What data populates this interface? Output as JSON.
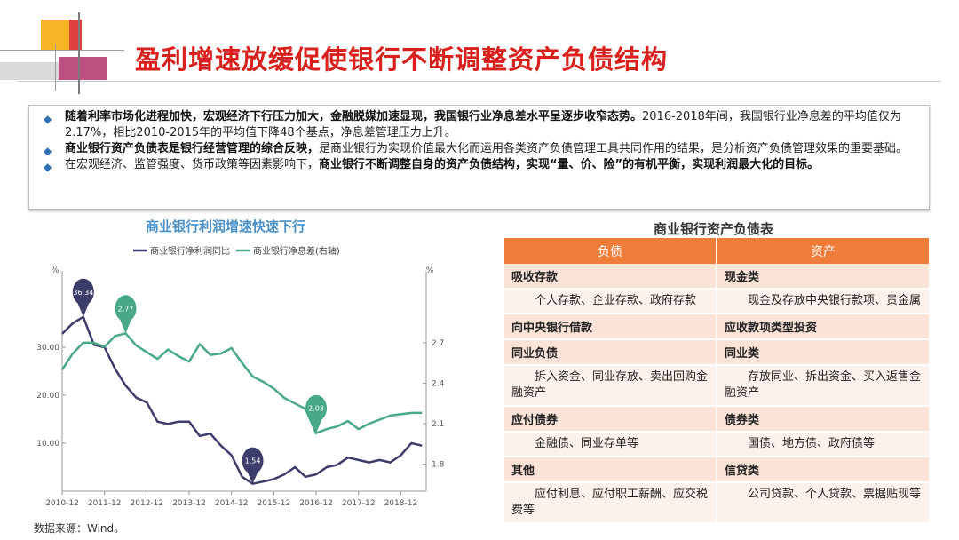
{
  "title": "盈利增速放缓促使银行不断调整资产负债结构",
  "summary": [
    {
      "bold": "随着利率市场化进程加快，宏观经济下行压力加大，金融脱媒加速显现，我国银行业净息差水平呈逐步收窄态势。",
      "normal": "2016-2018年间，我国银行业净息差的平均值仅为2.17%，相比2010-2015年的平均值下降48个基点，净息差管理压力上升。",
      "bold2": ""
    },
    {
      "bold": "商业银行资产负债表是银行经营管理的综合反映，",
      "normal": "是商业银行为实现价值最大化而运用各类资产负债管理工具共同作用的结果，是分析资产负债管理效果的重要基础。",
      "bold2": ""
    },
    {
      "bold": "",
      "normal": "在宏观经济、监管强度、货币政策等因素影响下，",
      "bold2": "商业银行不断调整自身的资产负债结构，实现“量、价、险”的有机平衡，实现利润最大化的目标。"
    }
  ],
  "chart_heading": "商业银行利润增速快速下行",
  "table_heading": "商业银行资产负债表",
  "source": "数据来源：Wind。",
  "colors": {
    "profit": "#3d3d6b",
    "nim": "#4aa88a",
    "accent": "#d8201c",
    "table_header": "#f07c3a"
  },
  "chart_data": {
    "type": "line",
    "legend": [
      "商业银行净利润同比",
      "商业银行净息差(右轴)"
    ],
    "y_left_unit": "%",
    "y_right_unit": "%",
    "y_left_ticks": [
      "30.00",
      "20.00",
      "10.00"
    ],
    "y_right_ticks": [
      "2.70",
      "2.40",
      "2.10",
      "1.80"
    ],
    "y_left_range": [
      0,
      45
    ],
    "y_right_range": [
      1.6,
      3.2
    ],
    "x_ticks": [
      "2010-12",
      "2011-12",
      "2012-12",
      "2013-12",
      "2014-12",
      "2015-12",
      "2016-12",
      "2017-12",
      "2018-12"
    ],
    "x_range": [
      2010.75,
      2019.35
    ],
    "series": [
      {
        "name": "商业银行净利润同比",
        "axis": "left",
        "points": [
          [
            2010.75,
            32.8
          ],
          [
            2011.0,
            35.0
          ],
          [
            2011.25,
            36.34
          ],
          [
            2011.5,
            30.5
          ],
          [
            2011.75,
            30.0
          ],
          [
            2012.0,
            25.5
          ],
          [
            2012.25,
            22.0
          ],
          [
            2012.5,
            19.5
          ],
          [
            2012.75,
            18.5
          ],
          [
            2013.0,
            14.5
          ],
          [
            2013.25,
            14.0
          ],
          [
            2013.5,
            14.5
          ],
          [
            2013.75,
            14.5
          ],
          [
            2014.0,
            11.5
          ],
          [
            2014.25,
            12.0
          ],
          [
            2014.5,
            9.5
          ],
          [
            2014.75,
            7.5
          ],
          [
            2015.0,
            3.0
          ],
          [
            2015.25,
            1.54
          ],
          [
            2015.5,
            2.0
          ],
          [
            2015.75,
            2.5
          ],
          [
            2016.0,
            3.5
          ],
          [
            2016.25,
            5.0
          ],
          [
            2016.5,
            3.0
          ],
          [
            2016.75,
            3.5
          ],
          [
            2017.0,
            5.0
          ],
          [
            2017.25,
            5.5
          ],
          [
            2017.5,
            7.0
          ],
          [
            2017.75,
            6.5
          ],
          [
            2018.0,
            6.0
          ],
          [
            2018.25,
            6.5
          ],
          [
            2018.5,
            6.0
          ],
          [
            2018.75,
            7.5
          ],
          [
            2019.0,
            10.0
          ],
          [
            2019.25,
            9.5
          ]
        ],
        "annotation": [
          {
            "x": 2011.25,
            "y": 36.34,
            "label": "36.34"
          },
          {
            "x": 2015.25,
            "y": 1.54,
            "label": "1.54"
          }
        ]
      },
      {
        "name": "商业银行净息差(右轴)",
        "axis": "right",
        "points": [
          [
            2010.75,
            2.5
          ],
          [
            2011.0,
            2.62
          ],
          [
            2011.25,
            2.7
          ],
          [
            2011.5,
            2.7
          ],
          [
            2011.75,
            2.67
          ],
          [
            2012.0,
            2.75
          ],
          [
            2012.25,
            2.77
          ],
          [
            2012.5,
            2.68
          ],
          [
            2012.75,
            2.63
          ],
          [
            2013.0,
            2.58
          ],
          [
            2013.25,
            2.65
          ],
          [
            2013.5,
            2.6
          ],
          [
            2013.75,
            2.56
          ],
          [
            2014.0,
            2.69
          ],
          [
            2014.25,
            2.61
          ],
          [
            2014.5,
            2.62
          ],
          [
            2014.75,
            2.66
          ],
          [
            2015.0,
            2.55
          ],
          [
            2015.25,
            2.45
          ],
          [
            2015.5,
            2.41
          ],
          [
            2015.75,
            2.36
          ],
          [
            2016.0,
            2.29
          ],
          [
            2016.25,
            2.25
          ],
          [
            2016.5,
            2.21
          ],
          [
            2016.75,
            2.03
          ],
          [
            2017.0,
            2.06
          ],
          [
            2017.25,
            2.08
          ],
          [
            2017.5,
            2.12
          ],
          [
            2017.75,
            2.06
          ],
          [
            2018.0,
            2.1
          ],
          [
            2018.25,
            2.13
          ],
          [
            2018.5,
            2.16
          ],
          [
            2018.75,
            2.17
          ],
          [
            2019.0,
            2.18
          ],
          [
            2019.25,
            2.18
          ]
        ],
        "annotation": [
          {
            "x": 2012.25,
            "y": 2.77,
            "label": "2.77"
          },
          {
            "x": 2016.75,
            "y": 2.03,
            "label": "2.03"
          }
        ]
      }
    ]
  },
  "table": {
    "headers": [
      "负债",
      "资产"
    ],
    "rows": [
      {
        "kind": "cat",
        "cells": [
          "吸收存款",
          "现金类"
        ]
      },
      {
        "kind": "det",
        "cells": [
          "个人存款、企业存款、政府存款",
          "现金及存放中央银行款项、贵金属"
        ]
      },
      {
        "kind": "cat",
        "cells": [
          "向中央银行借款",
          "应收款项类型投资"
        ]
      },
      {
        "kind": "cat",
        "cells": [
          "同业负债",
          "同业类"
        ]
      },
      {
        "kind": "det",
        "cells": [
          "拆入资金、同业存放、卖出回购金融资产",
          "存放同业、拆出资金、买入返售金融资产"
        ]
      },
      {
        "kind": "cat",
        "cells": [
          "应付债券",
          "债券类"
        ]
      },
      {
        "kind": "det",
        "cells": [
          "金融债、同业存单等",
          "国债、地方债、政府债等"
        ]
      },
      {
        "kind": "cat",
        "cells": [
          "其他",
          "信贷类"
        ]
      },
      {
        "kind": "det",
        "cells": [
          "应付利息、应付职工薪酬、应交税费等",
          "公司贷款、个人贷款、票据贴现等"
        ]
      }
    ]
  }
}
